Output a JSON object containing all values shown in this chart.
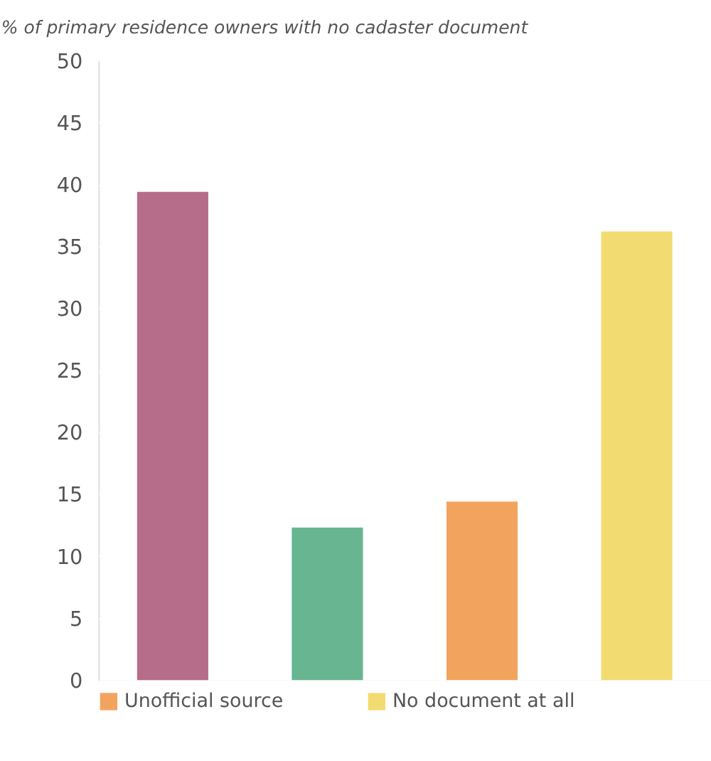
{
  "chart_data": {
    "type": "bar",
    "title": "% of primary residence owners with no cadaster document",
    "categories": [
      null,
      null,
      null,
      null
    ],
    "series": [
      {
        "color": "#b56d89",
        "values": [
          39.4,
          null,
          null,
          null
        ]
      },
      {
        "color": "#67b591",
        "values": [
          null,
          12.3,
          null,
          null
        ]
      },
      {
        "name": "Unofficial source",
        "color": "#f2a45f",
        "values": [
          null,
          null,
          14.4,
          null
        ]
      },
      {
        "name": "No document at all",
        "color": "#f2dc72",
        "values": [
          null,
          null,
          null,
          36.2
        ]
      }
    ],
    "ylim": [
      0,
      50
    ],
    "yticks": [
      0,
      5,
      10,
      15,
      20,
      25,
      30,
      35,
      40,
      45,
      50
    ],
    "grid": "y",
    "legend": "bottom left"
  }
}
